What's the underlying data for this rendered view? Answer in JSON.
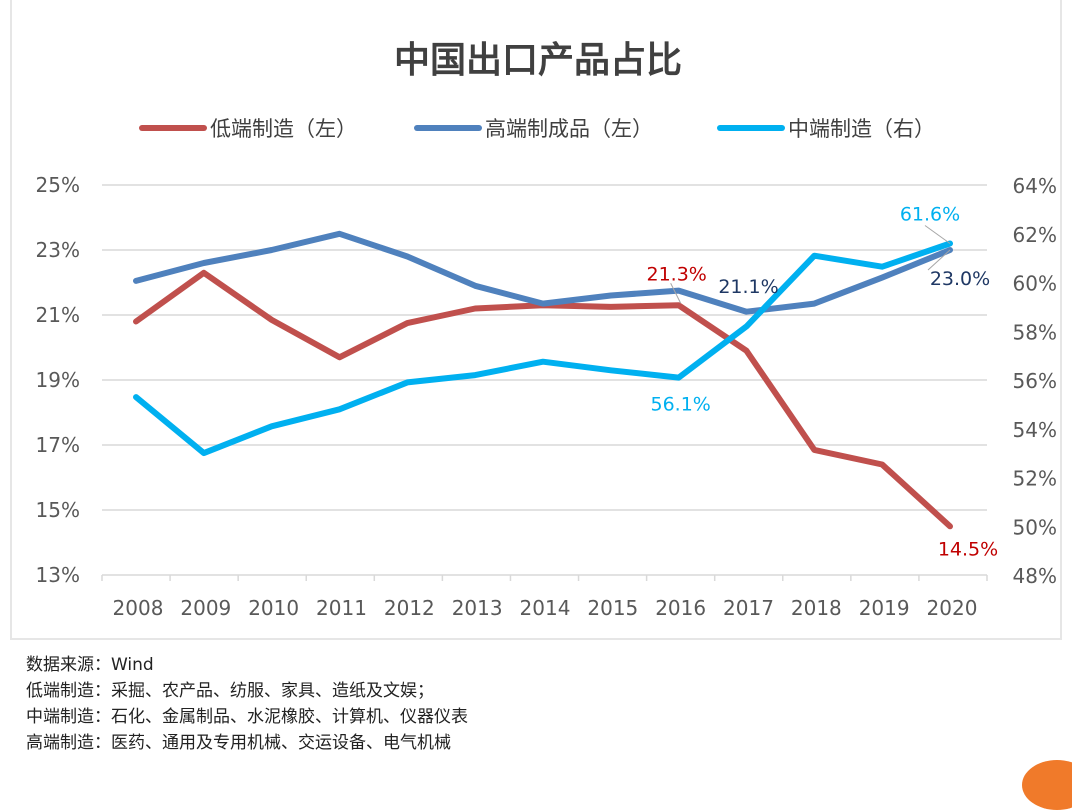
{
  "chart_data": {
    "type": "line",
    "title": "中国出口产品占比",
    "categories": [
      "2008",
      "2009",
      "2010",
      "2011",
      "2012",
      "2013",
      "2014",
      "2015",
      "2016",
      "2017",
      "2018",
      "2019",
      "2020"
    ],
    "left_axis": {
      "ylim": [
        13,
        25
      ],
      "ticks": [
        "13%",
        "15%",
        "17%",
        "19%",
        "21%",
        "23%",
        "25%"
      ]
    },
    "right_axis": {
      "ylim": [
        48,
        64
      ],
      "ticks": [
        "48%",
        "50%",
        "52%",
        "54%",
        "56%",
        "58%",
        "60%",
        "62%",
        "64%"
      ]
    },
    "grid": true,
    "legend_position": "top",
    "series": [
      {
        "name": "低端制造（左）",
        "axis": "left",
        "color": "#c0504d",
        "values": [
          20.8,
          22.3,
          20.85,
          19.7,
          20.75,
          21.2,
          21.3,
          21.25,
          21.3,
          19.9,
          16.85,
          16.4,
          14.5
        ]
      },
      {
        "name": "高端制成品（左）",
        "axis": "left",
        "color": "#4f81bd",
        "values": [
          22.05,
          22.6,
          23.0,
          23.5,
          22.8,
          21.9,
          21.35,
          21.6,
          21.75,
          21.1,
          21.35,
          22.15,
          23.0
        ]
      },
      {
        "name": "中端制造（右）",
        "axis": "right",
        "color": "#00b0f0",
        "values": [
          55.3,
          53.0,
          54.1,
          54.8,
          55.9,
          56.2,
          56.75,
          56.4,
          56.1,
          58.2,
          61.1,
          60.65,
          61.6
        ]
      }
    ],
    "annotations": [
      {
        "text": "21.3%",
        "series": 0,
        "index": 8,
        "color": "#c00000"
      },
      {
        "text": "14.5%",
        "series": 0,
        "index": 12,
        "color": "#c00000"
      },
      {
        "text": "21.1%",
        "series": 1,
        "index": 9,
        "color": "#1f3864"
      },
      {
        "text": "23.0%",
        "series": 1,
        "index": 12,
        "color": "#1f3864"
      },
      {
        "text": "56.1%",
        "series": 2,
        "index": 8,
        "color": "#00b0f0"
      },
      {
        "text": "61.6%",
        "series": 2,
        "index": 12,
        "color": "#00b0f0"
      }
    ]
  },
  "notes": {
    "source": "数据来源：Wind",
    "low": "低端制造：采掘、农产品、纺服、家具、造纸及文娱；",
    "mid": "中端制造：石化、金属制品、水泥橡胶、计算机、仪器仪表",
    "high": "高端制造：医药、通用及专用机械、交运设备、电气机械"
  }
}
